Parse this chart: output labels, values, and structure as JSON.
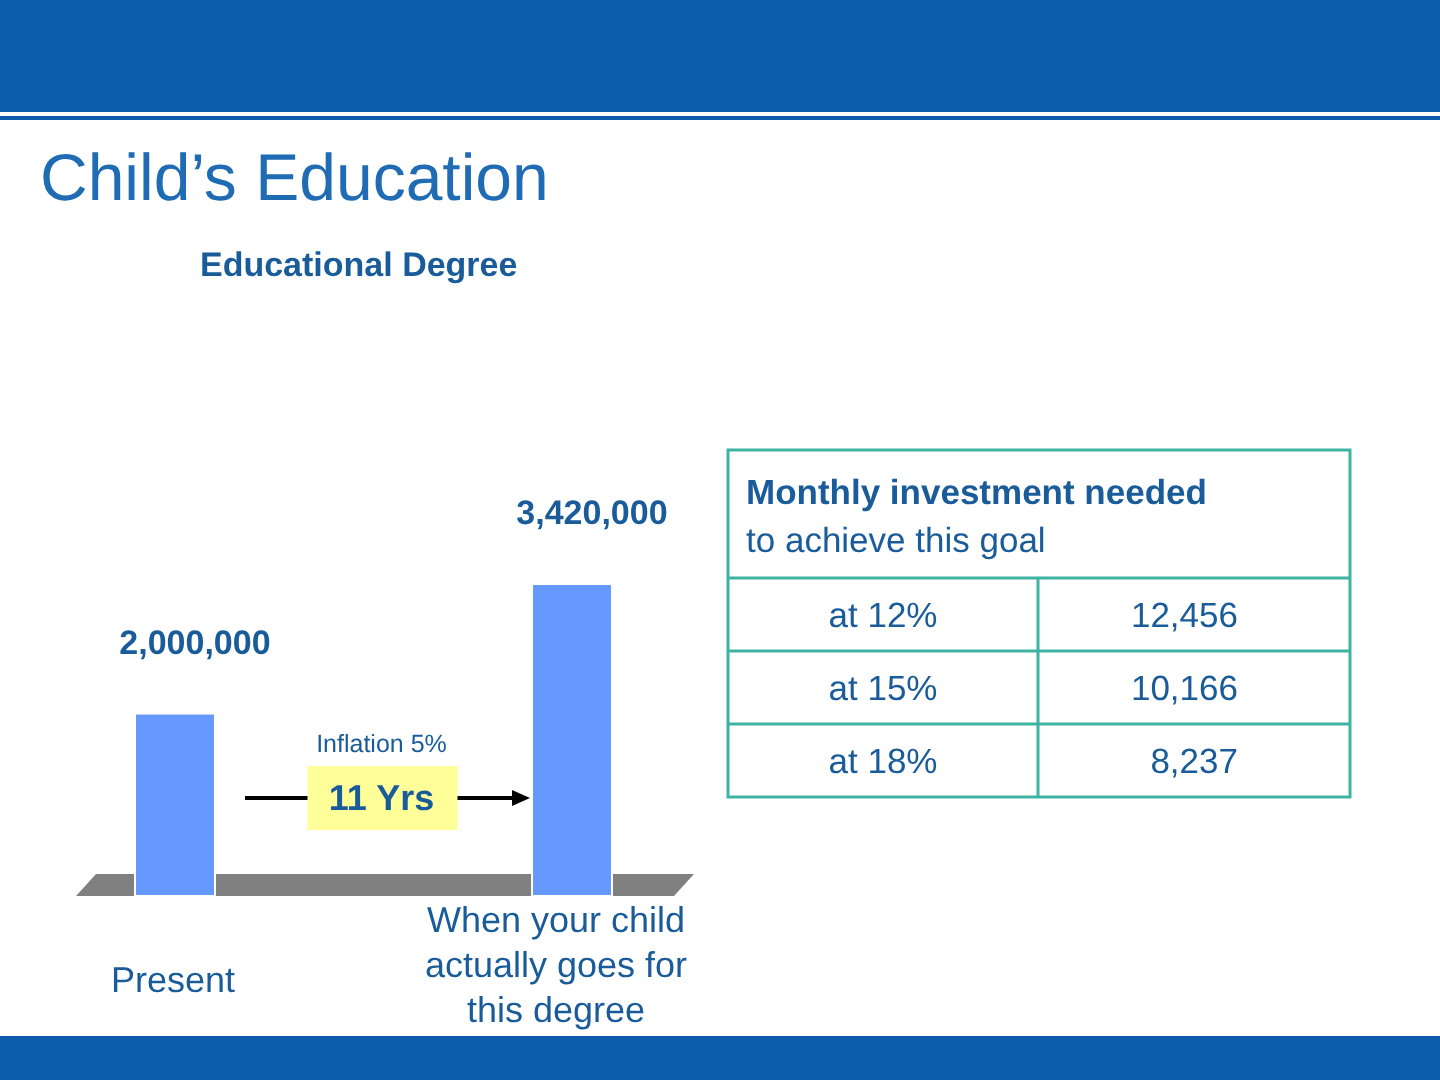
{
  "chart_data": [
    {
      "type": "bar",
      "title": "Child’s Education",
      "subtitle": "Educational Degree",
      "categories": [
        "Present",
        "When your child actually goes for this degree"
      ],
      "values": [
        2000000,
        3420000
      ],
      "color": "#6699ff",
      "value_labels": [
        "2,000,000",
        "3,420,000"
      ],
      "annotations": [
        "Inflation 5%",
        "11 Yrs"
      ]
    },
    {
      "type": "other",
      "title": "Monthly investment needed",
      "subtitle": "to achieve this goal",
      "categories": [
        "at 12%",
        "at 15%",
        "at 18%"
      ],
      "values": [
        12456,
        10166,
        8237
      ],
      "value_labels": [
        "12,456",
        "10,166",
        "8,237"
      ]
    }
  ]
}
